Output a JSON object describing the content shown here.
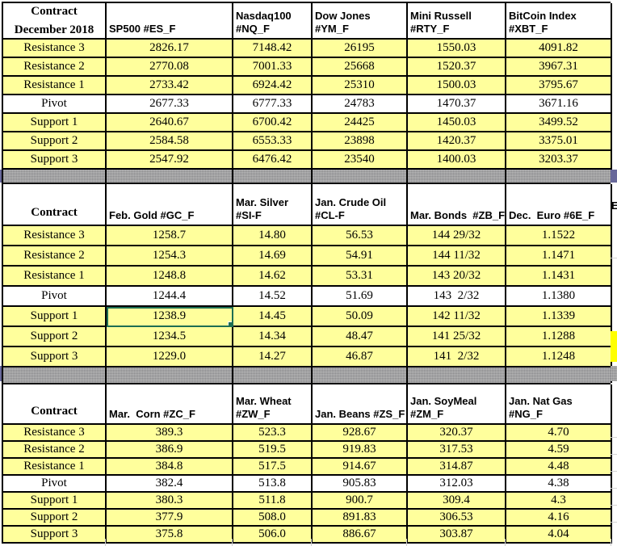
{
  "sections": [
    {
      "header_label": [
        "Contract",
        "December 2018"
      ],
      "columns": [
        [
          "SP500 #ES_F"
        ],
        [
          "Nasdaq100",
          "#NQ_F"
        ],
        [
          "Dow Jones",
          "#YM_F"
        ],
        [
          "Mini Russell",
          "#RTY_F"
        ],
        [
          "BitCoin Index",
          "#XBT_F"
        ]
      ],
      "rows": [
        {
          "label": "Resistance 3",
          "values": [
            "2826.17",
            "7148.42",
            "26195",
            "1550.03",
            "4091.82"
          ]
        },
        {
          "label": "Resistance 2",
          "values": [
            "2770.08",
            "7001.33",
            "25668",
            "1520.37",
            "3967.31"
          ]
        },
        {
          "label": "Resistance 1",
          "values": [
            "2733.42",
            "6924.42",
            "25310",
            "1500.03",
            "3795.67"
          ]
        },
        {
          "label": "Pivot",
          "values": [
            "2677.33",
            "6777.33",
            "24783",
            "1470.37",
            "3671.16"
          ]
        },
        {
          "label": "Support 1",
          "values": [
            "2640.67",
            "6700.42",
            "24425",
            "1450.03",
            "3499.52"
          ]
        },
        {
          "label": "Support 2",
          "values": [
            "2584.58",
            "6553.33",
            "23898",
            "1420.37",
            "3375.01"
          ]
        },
        {
          "label": "Support 3",
          "values": [
            "2547.92",
            "6476.42",
            "23540",
            "1400.03",
            "3203.37"
          ]
        }
      ]
    },
    {
      "header_label": [
        "Contract"
      ],
      "columns": [
        [
          "Feb. Gold #GC_F"
        ],
        [
          "Mar. Silver",
          "#SI-F"
        ],
        [
          "Jan. Crude Oil",
          "#CL-F"
        ],
        [
          "Mar. Bonds  #ZB_F"
        ],
        [
          "Dec.  Euro #6E_F"
        ]
      ],
      "rows": [
        {
          "label": "Resistance 3",
          "values": [
            "1258.7",
            "14.80",
            "56.53",
            "144 29/32",
            "1.1522"
          ]
        },
        {
          "label": "Resistance 2",
          "values": [
            "1254.3",
            "14.69",
            "54.91",
            "144 11/32",
            "1.1471"
          ]
        },
        {
          "label": "Resistance 1",
          "values": [
            "1248.8",
            "14.62",
            "53.31",
            "143 20/32",
            "1.1431"
          ]
        },
        {
          "label": "Pivot",
          "values": [
            "1244.4",
            "14.52",
            "51.69",
            "143  2/32",
            "1.1380"
          ]
        },
        {
          "label": "Support 1",
          "values": [
            "1238.9",
            "14.45",
            "50.09",
            "142 11/32",
            "1.1339"
          ]
        },
        {
          "label": "Support 2",
          "values": [
            "1234.5",
            "14.34",
            "48.47",
            "141 25/32",
            "1.1288"
          ]
        },
        {
          "label": "Support 3",
          "values": [
            "1229.0",
            "14.27",
            "46.87",
            "141  2/32",
            "1.1248"
          ]
        }
      ]
    },
    {
      "header_label": [
        "Contract"
      ],
      "columns": [
        [
          "Mar.  Corn #ZC_F"
        ],
        [
          "Mar. Wheat",
          "#ZW_F"
        ],
        [
          "Jan. Beans #ZS_F"
        ],
        [
          "Jan. SoyMeal",
          "#ZM_F"
        ],
        [
          "Jan. Nat Gas",
          "#NG_F"
        ]
      ],
      "rows": [
        {
          "label": "Resistance 3",
          "values": [
            "389.3",
            "523.3",
            "928.67",
            "320.37",
            "4.70"
          ]
        },
        {
          "label": "Resistance 2",
          "values": [
            "386.9",
            "519.5",
            "919.83",
            "317.53",
            "4.59"
          ]
        },
        {
          "label": "Resistance 1",
          "values": [
            "384.8",
            "517.5",
            "914.67",
            "314.87",
            "4.48"
          ]
        },
        {
          "label": "Pivot",
          "values": [
            "382.4",
            "513.8",
            "905.83",
            "312.03",
            "4.38"
          ]
        },
        {
          "label": "Support 1",
          "values": [
            "380.3",
            "511.8",
            "900.7",
            "309.4",
            "4.3"
          ]
        },
        {
          "label": "Support 2",
          "values": [
            "377.9",
            "508.0",
            "891.83",
            "306.53",
            "4.16"
          ]
        },
        {
          "label": "Support 3",
          "values": [
            "375.8",
            "506.0",
            "886.67",
            "303.87",
            "4.04"
          ]
        }
      ]
    }
  ],
  "selection": {
    "section": 1,
    "row": 4,
    "col": 0,
    "value": "1238.9"
  },
  "edge": {
    "cutoff_header_text": "E"
  },
  "colors": {
    "cell_yellow": "#FFFF9C",
    "pivot_white": "#FFFFFF",
    "divider_gray": "#A0A0A0",
    "outside_blue": "#68689A",
    "selection_green": "#1E6E53",
    "highlight_yellow": "#FFFF00",
    "border_black": "#000000"
  }
}
